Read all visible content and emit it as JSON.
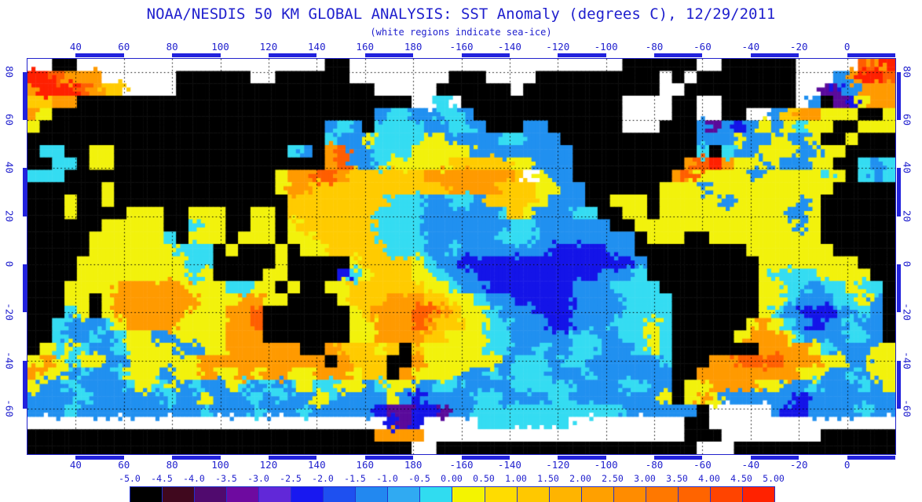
{
  "title": "NOAA/NESDIS 50 KM GLOBAL ANALYSIS: SST Anomaly (degrees C), 12/29/2011",
  "subtitle": "(white regions indicate sea-ice)",
  "colors": {
    "label_text": "#2121CE",
    "frame_blue": "#2222CC",
    "band_blue": "#2222DD",
    "graticule": "#000000",
    "background": "#FFFFFF"
  },
  "axes": {
    "lon_labels": [
      "40",
      "60",
      "80",
      "100",
      "120",
      "140",
      "160",
      "180",
      "-160",
      "-140",
      "-120",
      "-100",
      "-80",
      "-60",
      "-40",
      "-20",
      "0"
    ],
    "lon_values": [
      40,
      60,
      80,
      100,
      120,
      140,
      160,
      180,
      -160,
      -140,
      -120,
      -100,
      -80,
      -60,
      -40,
      -20,
      0
    ],
    "lat_labels": [
      "80",
      "60",
      "40",
      "20",
      "0",
      "-20",
      "-40",
      "-60"
    ],
    "lat_values": [
      80,
      60,
      40,
      20,
      0,
      -20,
      -40,
      -60
    ],
    "lon_start_deg": 20,
    "lon_span_deg": 360,
    "lat_top_deg": 85.5,
    "lat_span_deg": 164.5,
    "grid_interval_deg": 20
  },
  "colorbar": {
    "tick_labels": [
      "-5.0",
      "-4.5",
      "-4.0",
      "-3.5",
      "-3.0",
      "-2.5",
      "-2.0",
      "-1.5",
      "-1.0",
      "-0.5",
      "0.00",
      "0.50",
      "1.00",
      "1.50",
      "2.00",
      "2.50",
      "3.00",
      "3.50",
      "4.00",
      "4.50",
      "5.00"
    ],
    "cell_colors": [
      "#000000",
      "#40081E",
      "#500A6E",
      "#6E0AA0",
      "#6128D8",
      "#1818F0",
      "#1E50F0",
      "#2288F0",
      "#30AAF2",
      "#30DCF0",
      "#F4F400",
      "#FFDC00",
      "#FFC800",
      "#FFB400",
      "#FFA000",
      "#FF8C00",
      "#FF7800",
      "#FF6400",
      "#FF4400",
      "#FF2200"
    ]
  },
  "chart_data": {
    "type": "heatmap",
    "title": "NOAA/NESDIS 50 KM GLOBAL ANALYSIS: SST Anomaly (degrees C), 12/29/2011",
    "units": "degrees C",
    "date": "12/29/2011",
    "projection": "equirectangular, Pacific-centered, left edge 20E",
    "scale_min": -5.0,
    "scale_max": 5.0,
    "scale_step": 0.5,
    "legend_note": "white regions indicate sea-ice, black is land",
    "palette": {
      "K": "#000000",
      "W": "#FFFFFF",
      "p": "#5A0A9B",
      "d": "#1414E8",
      "b": "#2090F0",
      "c": "#35DCF2",
      "y": "#F2F20C",
      "g": "#FFCB00",
      "o": "#FF9A00",
      "r": "#FF5E00",
      "R": "#FF2000"
    },
    "anomaly_value_by_code": {
      "d": -2.2,
      "b": -1.2,
      "c": -0.6,
      "y": 0.3,
      "g": 0.8,
      "o": 1.5,
      "r": 2.5,
      "R": 4.0,
      "p": -3.5,
      "W": "sea-ice",
      "K": "land"
    },
    "grid": {
      "cols": 70,
      "rows_count": 32,
      "lon_left_deg_east": 20,
      "lat_top_deg": 85.5,
      "lat_bottom_deg": -79,
      "rows": [
        "WWKKWWWWWWWWWWWWWWWWWWWWKKWWWWWWWWWWWWWWWWWWWWWWKKKKKKWWKKKKKKWWWWWroR",
        "RRroooWWWWWWKKKKKKWWKKKKKKWWWWWWWWKKKWWWWKKKKKKKKKKWKWKKKKKKKKWWWboRRr",
        "oRRRroggWWWWKKKKKKKKKKKKKKKKWWWWWKKKKKKWKKKKKKKKKKKWWKKKKKKKKKWWpdbooo",
        "ggooKKKKKKKKKKKKKKKKKKKKKKKKKKKWWcWKKKKKKKKKKKKKWWWWKKWWKKKKKKWbKpdyoo",
        "oyKKKKKKKKKKKKKKKKKKKKKKKKKKbccbbccbKKKKKKKKKKKKWWWWKKWWKKWWbgooyyyKKy",
        "yKKKKKKKKKKKKKKKKKKKKKKKbcbKccccbbccbKKKbbKKKKKKWWWKKKbpbdbybycyyKKyyy",
        "KKKKKKKKKKKKKKKKKKKKKKKKcbbyccccyybbbbccbbbKKKKKKKKKKKbbbybbybbyKKyKKK",
        "KccKKyyKKKKKKKKKKKKKKcbKorbbcccyyyyybbbbbbbbKKKKKKKKKKcKcbbyyybbyyKKKK",
        "KKccKyyKKKKKKKKKKKKKKKKKorbbcyyyyygggggyybbbKKKKKKKKKorRoyybybbyyKKcbc",
        "cccKKKKKKKKKKKKKKKKKyoorroggggggooooooogGybbKKKKKKKKoryyyybyyyyycyKcbc",
        "KKKKKKyKKKKKKKKKKKKKyoogggggggggggoooogggyybbKKKKKKyyybyyyyyyyyyyKKKKK",
        "KKKyKKyKKKKKKKKKKKKKKggggggggcccbbccbggggybbbKKyyyKyyyyybyyyyybyKKKKKK",
        "KKKyKKKKyyyKKyyyKKyyKgggggggccccbbbbbbcgybbbccKKyyKyyyyyyyyyybbyKKKKKK",
        "KKKKKKyyyyyKKcyyKKyyKyggggggccccbbbbbbbccbbbbbbKKyyyyyyyyyyyyybyKKKKKK",
        "KKKKKyyyyyycKyyyKyyyKyygggggccccbbbbbbcccbbbbbbbbKyyyKKyyyyyyyyyKKKKKK",
        "KKKKKyyyyyyycccKyKKKyKyygggggcccbbcbbbbbbbdddddbbKKKKKKKKKyyyyyyyKKKKK",
        "KKKKyyyyyyyyyccKKKKKyKKKKKyggggycbbddddddddddddddbKKKKKKKKKyyyyyyyyKKK",
        "KKKKyyyyyyyyycyKKKKyyKKKKdcygggyycbbddddddddddbbbcKKKKKKKKKyccccyyyyKK",
        "KKKyyyyooooooyyyccyyKyKKyyggggggyycbbdddddddbbbccccKKKKKKKKyyccbccyccK",
        "KKKyyKyoooooooyyyooyyKKKKygggoooggyycbbdddddbbbbccccKKKKKKKyycbbbccybK",
        "KKKcyKyooooooyyyoorKKKKKKKygooorrogyycbbbdddbbbbccccKKKKKKKycbdddbbcbK",
        "KKcbbbcyooooyyyyoorKKKKKKKyyoooroggyyccbbbddbbbcccycKKKKKKyoycbdbbcbbK",
        "KKcbbcbcyybbyyyyoooKKKKKKKyyooooggyyyccbbbbbccbbccycKKKKKyoooycbbbccbK",
        "KycycbbcyyyybbyyooooooKKogggygKgyyyyyccbbcbbccbbbcycKKKKKKKooooycbbbyy",
        "yoycyybbyyyyyyooooooooooKogggKKoyyyyyybcccbccbbbbbbcKKKoorrrroooyybbyy",
        "oyybcbbcyyybyyoyyoyooyyoooyggKoyyyybbcbcccbbbcbbbbbbKKooooooooyybbcbyy",
        "ybbcbbbbcycybcbbycbcbcyccyybcyybbccbbbbcccccbbbbccbbKyyooooyybbcbbbcby",
        "bbbbcbbbbbbcbbybbbcbcbbycbbbbybdbbbbccbbbbccbbbbbbbyKyoybbbbbbdbbbbbbb",
        "bbbcbbbbbbbbbbcbbbcbbbcbbbbbdppddpbbccccccccccccbbbbbbKWWWWWbddbbbbcbb",
        "WWWWWWWWWWWWWWWWWWWWWWWWWWWWWdpdWWWWccccccccWWWWWWWWWKKWWWWWWWWWWWWWWW",
        "KKKKKKKKKKKKKKKKKKKKKKKKKKKKooooWWWWWWWWWWWWWWWWWWWWWKKKWWWWWWWWKKKKKK",
        "KKKKKKKKKKKKKKKKKKKKKKKKKKKKKKKWWKKKKKKKKKKKKKKKKKKKKKWWWKKKKKKKKKKKKK"
      ]
    }
  }
}
